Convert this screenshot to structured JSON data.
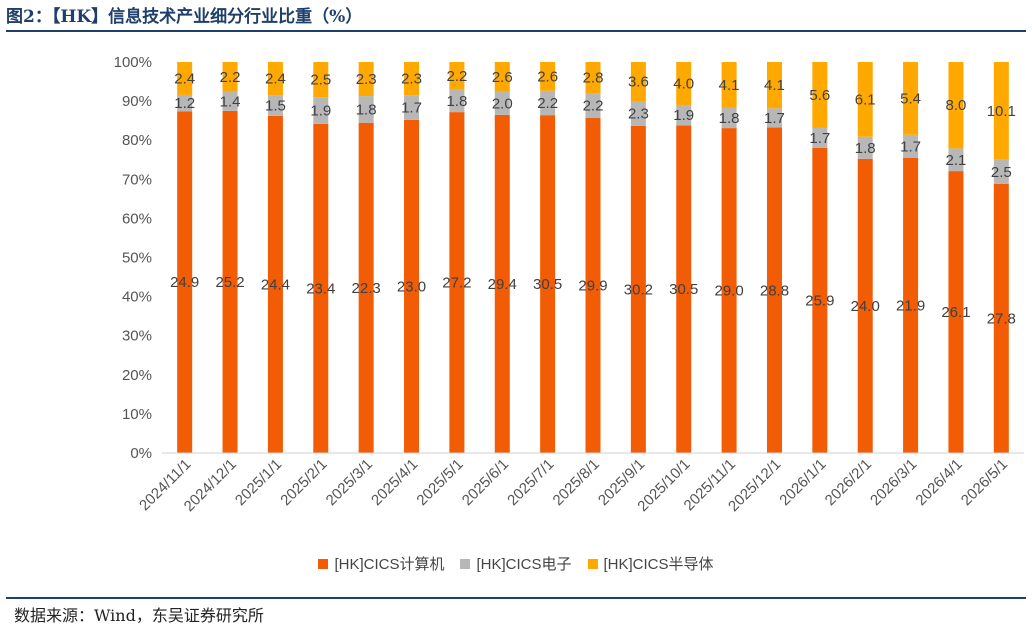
{
  "header": {
    "title": "图2：【HK】信息技术产业细分行业比重（%）"
  },
  "footer": {
    "source": "数据来源：Wind，东吴证券研究所"
  },
  "colors": {
    "computer": "#f25c05",
    "electronics": "#b7b7b7",
    "semiconductor": "#ffa800",
    "title": "#1f3f6b"
  },
  "chart_data": {
    "type": "bar",
    "stacked": true,
    "percent_stacked": true,
    "title": "",
    "xlabel": "",
    "ylabel": "",
    "ylim": [
      0,
      100
    ],
    "y_ticks": [
      "0%",
      "10%",
      "20%",
      "30%",
      "40%",
      "50%",
      "60%",
      "70%",
      "80%",
      "90%",
      "100%"
    ],
    "grid": false,
    "legend_position": "bottom",
    "categories": [
      "2024/11/1",
      "2024/12/1",
      "2025/1/1",
      "2025/2/1",
      "2025/3/1",
      "2025/4/1",
      "2025/5/1",
      "2025/6/1",
      "2025/7/1",
      "2025/8/1",
      "2025/9/1",
      "2025/10/1",
      "2025/11/1",
      "2025/12/1",
      "2026/1/1",
      "2026/2/1",
      "2026/3/1",
      "2026/4/1",
      "2026/5/1"
    ],
    "series": [
      {
        "name": "[HK]CICS计算机",
        "values": [
          24.9,
          25.2,
          24.4,
          23.4,
          22.3,
          23.0,
          27.2,
          29.4,
          30.5,
          29.9,
          30.2,
          30.5,
          29.0,
          28.8,
          25.9,
          24.0,
          21.9,
          26.1,
          27.8
        ],
        "labels": [
          "24.9",
          "25.2",
          "24.4",
          "23.4",
          "22.3",
          "23.0",
          "27.2",
          "29.4",
          "30.5",
          "29.9",
          "30.2",
          "30.5",
          "29.0",
          "28.8",
          "25.9",
          "24.0",
          "21.9",
          "26.1",
          "27.8"
        ]
      },
      {
        "name": "[HK]CICS电子",
        "values": [
          1.2,
          1.4,
          1.5,
          1.9,
          1.8,
          1.7,
          1.8,
          2.0,
          2.2,
          2.2,
          2.3,
          1.9,
          1.8,
          1.7,
          1.7,
          1.8,
          1.7,
          2.1,
          2.5
        ],
        "labels": [
          "1.2",
          "1.4",
          "1.5",
          "1.9",
          "1.8",
          "1.7",
          "1.8",
          "2.0",
          "2.2",
          "2.2",
          "2.3",
          "1.9",
          "1.8",
          "1.7",
          "1.7",
          "1.8",
          "1.7",
          "2.1",
          "2.5"
        ]
      },
      {
        "name": "[HK]CICS半导体",
        "values": [
          2.4,
          2.2,
          2.4,
          2.5,
          2.3,
          2.3,
          2.2,
          2.6,
          2.6,
          2.8,
          3.6,
          4.0,
          4.1,
          4.1,
          5.6,
          6.1,
          5.4,
          8.0,
          10.1
        ],
        "labels": [
          "2.4",
          "2.2",
          "2.4",
          "2.5",
          "2.3",
          "2.3",
          "2.2",
          "2.6",
          "2.6",
          "2.8",
          "3.6",
          "4.0",
          "4.1",
          "4.1",
          "5.6",
          "6.1",
          "5.4",
          "8.0",
          "10.1"
        ]
      }
    ]
  }
}
